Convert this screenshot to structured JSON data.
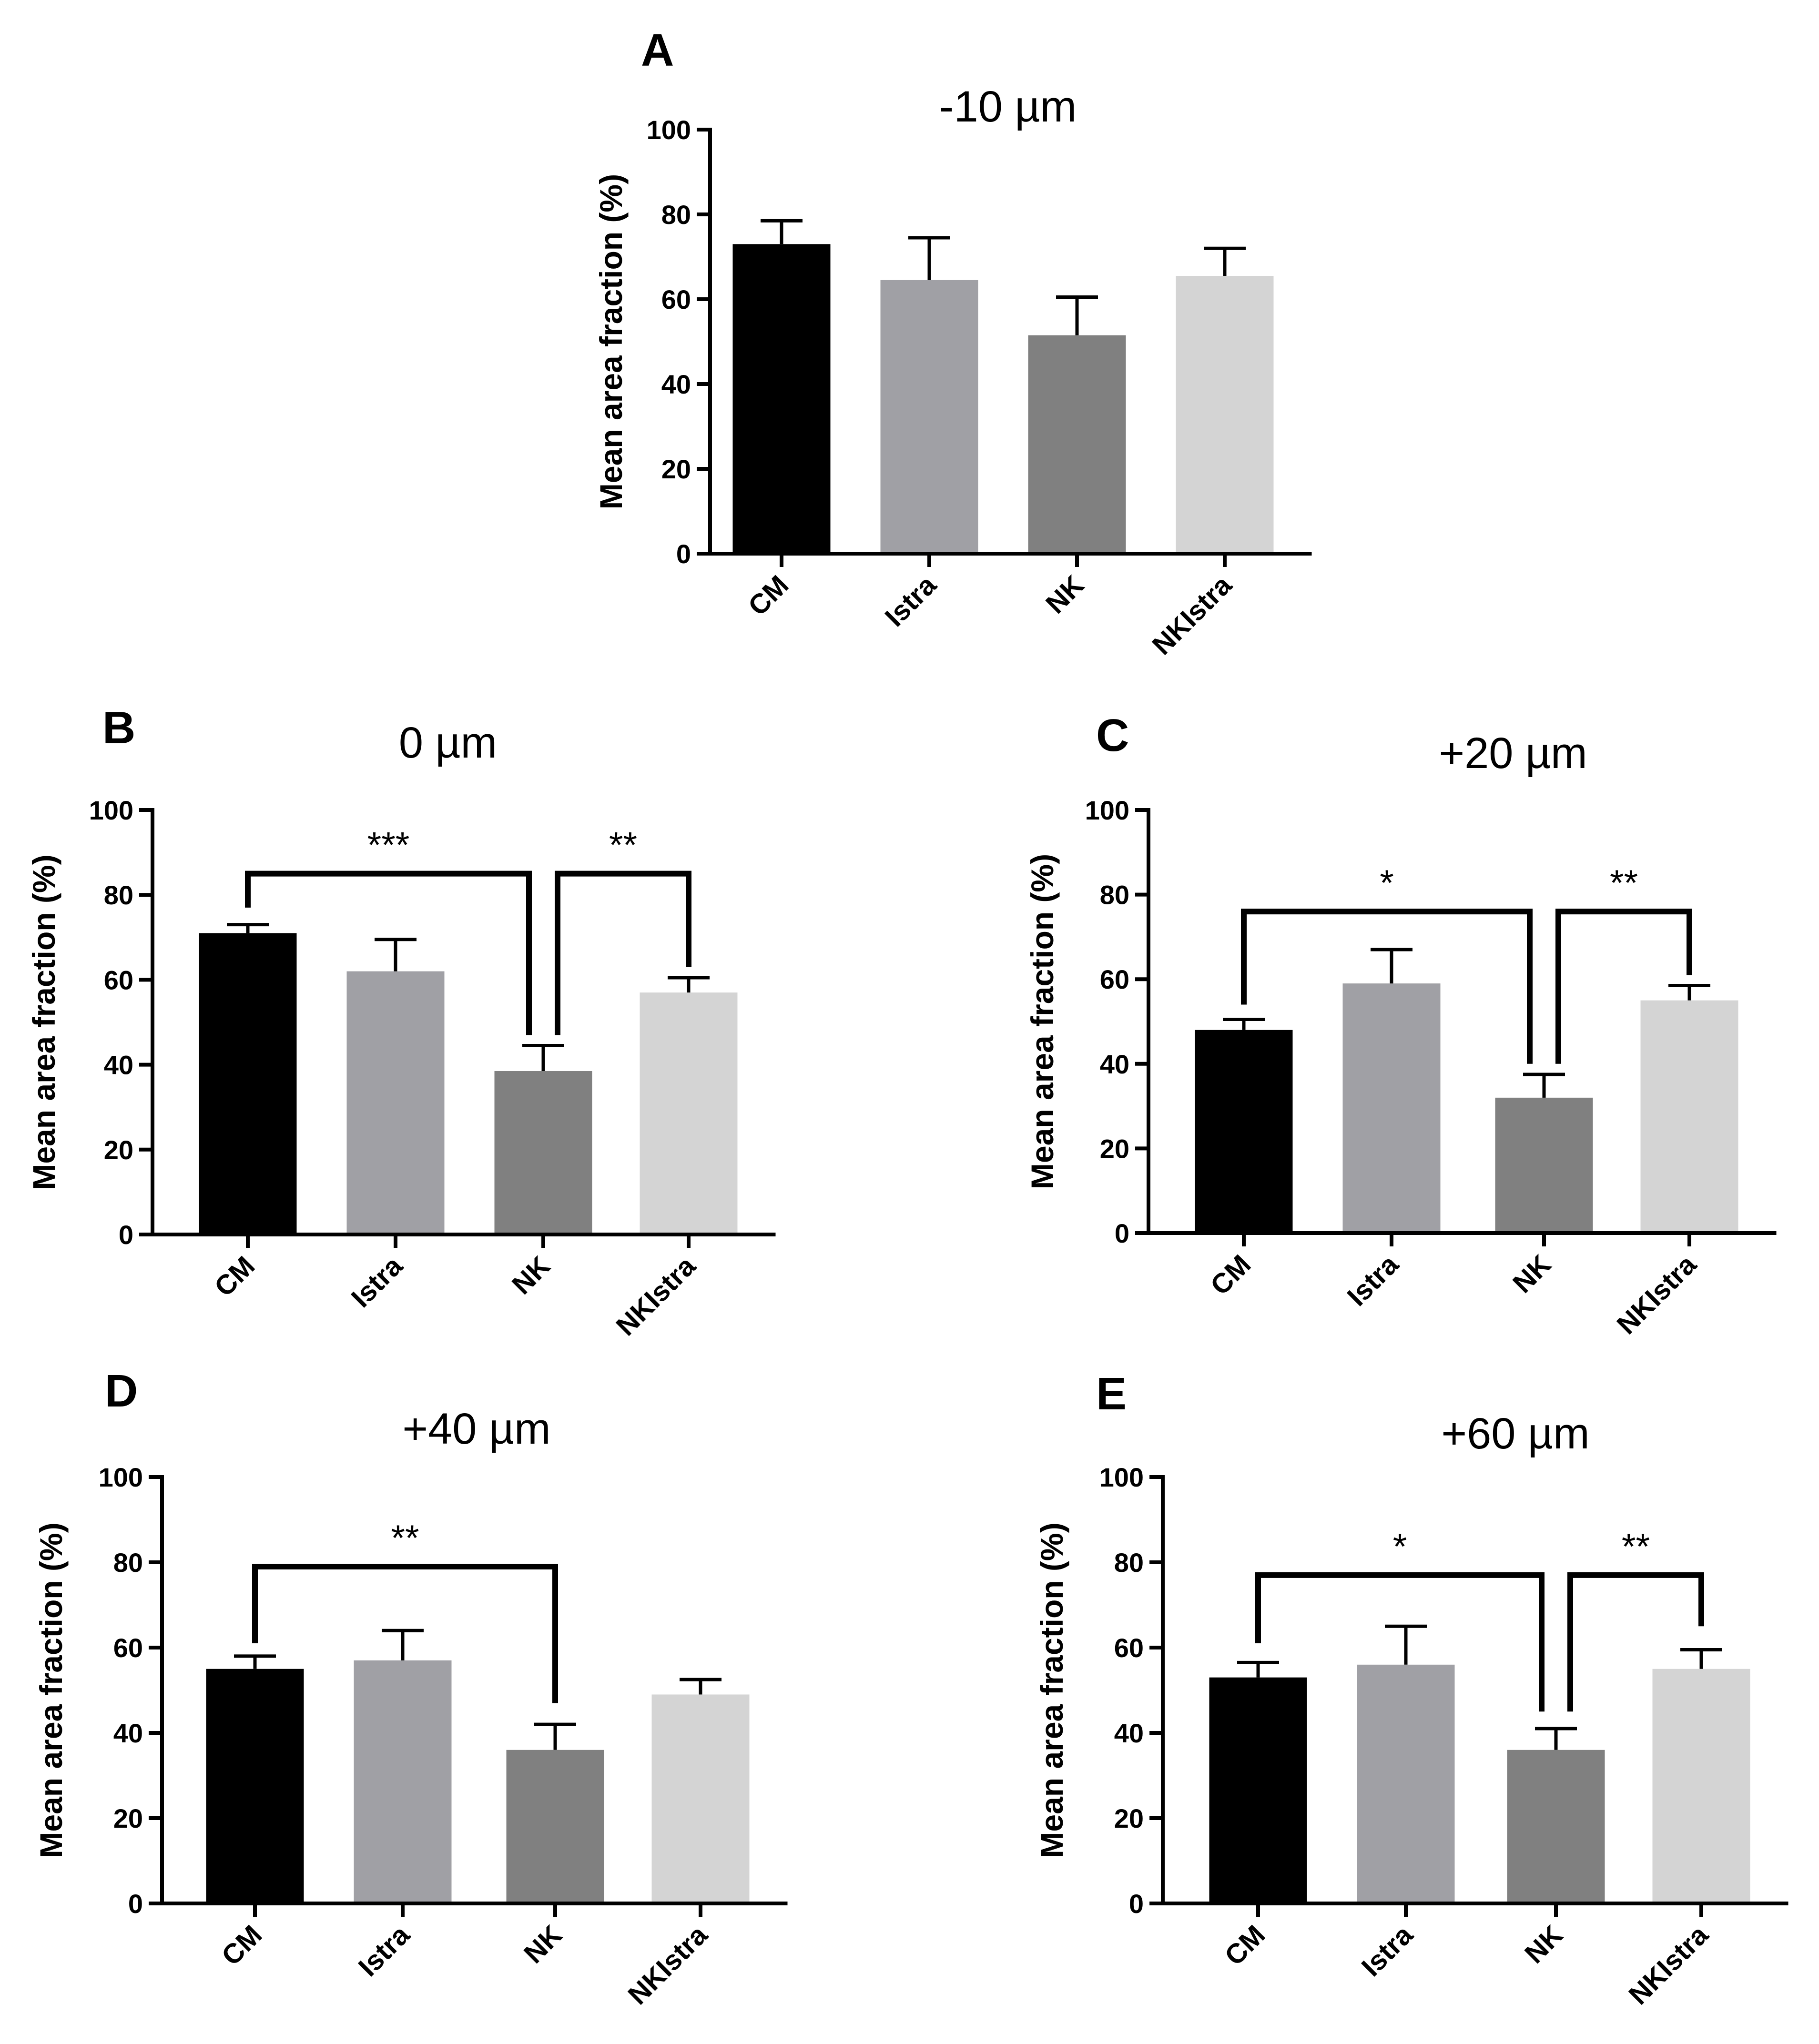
{
  "figure": {
    "shared": {
      "ylabel": "Mean area fraction (%)",
      "categories": [
        "CM",
        "Istra",
        "NK",
        "NKIstra"
      ],
      "colors": {
        "CM": "#000000",
        "Istra": "#a0a0a5",
        "NK": "#808080",
        "NKIstra": "#d4d4d4",
        "axis": "#000000"
      }
    }
  },
  "chart_data": [
    {
      "panel": "A",
      "type": "bar",
      "title": "-10 µm",
      "xlabel": "",
      "ylabel": "Mean area fraction (%)",
      "ylim": [
        0,
        100
      ],
      "yticks": [
        0,
        20,
        40,
        60,
        80,
        100
      ],
      "categories": [
        "CM",
        "Istra",
        "NK",
        "NKIstra"
      ],
      "values": [
        73,
        64.5,
        51.5,
        65.5
      ],
      "error_upper": [
        78.5,
        74.5,
        60.5,
        72
      ],
      "significance": []
    },
    {
      "panel": "B",
      "type": "bar",
      "title": "0 µm",
      "xlabel": "",
      "ylabel": "Mean area fraction (%)",
      "ylim": [
        0,
        100
      ],
      "yticks": [
        0,
        20,
        40,
        60,
        80,
        100
      ],
      "categories": [
        "CM",
        "Istra",
        "NK",
        "NKIstra"
      ],
      "values": [
        71,
        62,
        38.5,
        57
      ],
      "error_upper": [
        73,
        69.5,
        44.5,
        60.5
      ],
      "significance": [
        {
          "from": "CM",
          "to": "NK",
          "label": "***",
          "level": 85,
          "start": 77,
          "end": 47
        },
        {
          "from": "NK",
          "to": "NKIstra",
          "label": "**",
          "level": 85,
          "start": 47,
          "end": 63
        }
      ]
    },
    {
      "panel": "C",
      "type": "bar",
      "title": "+20 µm",
      "xlabel": "",
      "ylabel": "Mean area fraction (%)",
      "ylim": [
        0,
        100
      ],
      "yticks": [
        0,
        20,
        40,
        60,
        80,
        100
      ],
      "categories": [
        "CM",
        "Istra",
        "NK",
        "NKIstra"
      ],
      "values": [
        48,
        59,
        32,
        55
      ],
      "error_upper": [
        50.5,
        67,
        37.5,
        58.5
      ],
      "significance": [
        {
          "from": "CM",
          "to": "NK",
          "label": "*",
          "level": 76,
          "start": 54,
          "end": 40
        },
        {
          "from": "NK",
          "to": "NKIstra",
          "label": "**",
          "level": 76,
          "start": 40,
          "end": 61
        }
      ]
    },
    {
      "panel": "D",
      "type": "bar",
      "title": "+40 µm",
      "xlabel": "",
      "ylabel": "Mean area fraction (%)",
      "ylim": [
        0,
        100
      ],
      "yticks": [
        0,
        20,
        40,
        60,
        80,
        100
      ],
      "categories": [
        "CM",
        "Istra",
        "NK",
        "NKIstra"
      ],
      "values": [
        55,
        57,
        36,
        49
      ],
      "error_upper": [
        58,
        64,
        42,
        52.5
      ],
      "significance": [
        {
          "from": "CM",
          "to": "NK",
          "label": "**",
          "level": 79,
          "start": 61,
          "end": 47
        }
      ]
    },
    {
      "panel": "E",
      "type": "bar",
      "title": "+60 µm",
      "xlabel": "",
      "ylabel": "Mean area fraction (%)",
      "ylim": [
        0,
        100
      ],
      "yticks": [
        0,
        20,
        40,
        60,
        80,
        100
      ],
      "categories": [
        "CM",
        "Istra",
        "NK",
        "NKIstra"
      ],
      "values": [
        53,
        56,
        36,
        55
      ],
      "error_upper": [
        56.5,
        65,
        41,
        59.5
      ],
      "significance": [
        {
          "from": "CM",
          "to": "NK",
          "label": "*",
          "level": 77,
          "start": 61,
          "end": 45
        },
        {
          "from": "NK",
          "to": "NKIstra",
          "label": "**",
          "level": 77,
          "start": 45,
          "end": 65
        }
      ]
    }
  ]
}
